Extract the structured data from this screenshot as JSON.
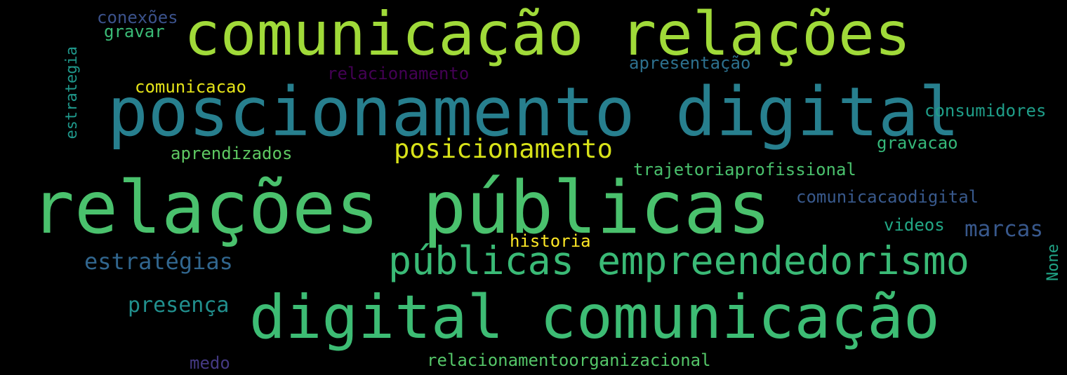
{
  "words": [
    {
      "text": "comunicação relações",
      "color": "#a0da39"
    },
    {
      "text": "poscionamento digital",
      "color": "#277f8e"
    },
    {
      "text": "relações públicas",
      "color": "#4ac16d"
    },
    {
      "text": "digital comunicação",
      "color": "#3dbc74"
    },
    {
      "text": "públicas empreendedorismo",
      "color": "#3aba76"
    },
    {
      "text": "posicionamento",
      "color": "#d8e219"
    },
    {
      "text": "estratégias",
      "color": "#31668e"
    },
    {
      "text": "marcas",
      "color": "#38588c"
    },
    {
      "text": "presença",
      "color": "#218f8d"
    },
    {
      "text": "relacionamento",
      "color": "#440154"
    },
    {
      "text": "apresentação",
      "color": "#2d708e"
    },
    {
      "text": "comunicacao",
      "color": "#e5e419"
    },
    {
      "text": "consumidores",
      "color": "#1f9e89"
    },
    {
      "text": "aprendizados",
      "color": "#5ec962"
    },
    {
      "text": "gravacao",
      "color": "#35b779"
    },
    {
      "text": "trajetoriaprofissional",
      "color": "#4ac16d"
    },
    {
      "text": "comunicacaodigital",
      "color": "#38598c"
    },
    {
      "text": "videos",
      "color": "#22a785"
    },
    {
      "text": "historia",
      "color": "#fde725"
    },
    {
      "text": "relacionamentoorganizacional",
      "color": "#54c568"
    },
    {
      "text": "medo",
      "color": "#443983"
    },
    {
      "text": "conexões",
      "color": "#3b528b"
    },
    {
      "text": "gravar",
      "color": "#3aba76"
    },
    {
      "text": "estrategia",
      "color": "#1f988b"
    },
    {
      "text": "None",
      "color": "#20a486"
    }
  ]
}
